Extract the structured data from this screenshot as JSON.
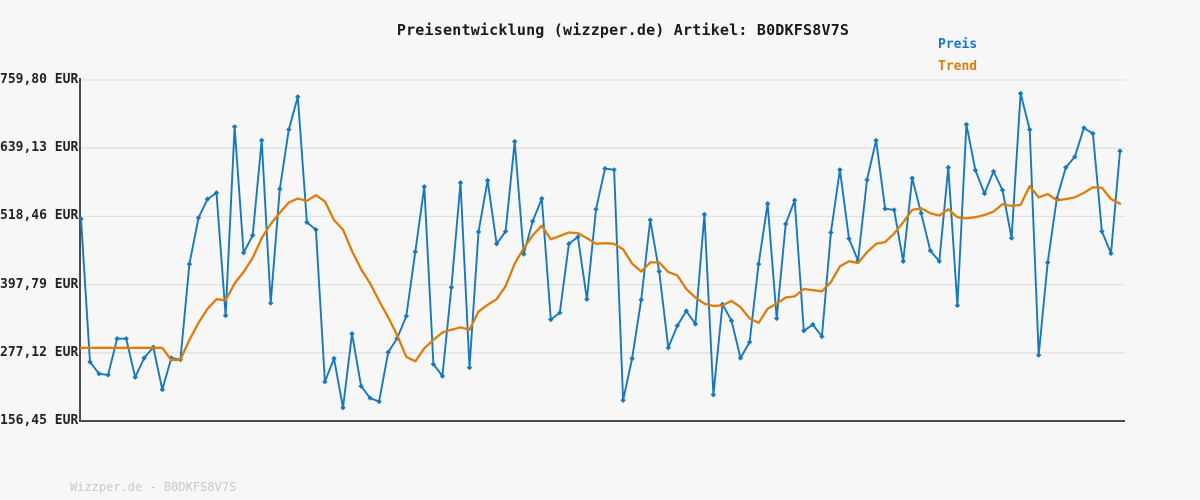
{
  "title": "Preisentwicklung (wizzper.de) Artikel: B0DKFS8V7S",
  "legend": {
    "preis_label": "Preis",
    "trend_label": "Trend",
    "position": "top-right"
  },
  "footer": "Wizzper.de - B0DKFS8V7S",
  "colors": {
    "preis": "#1878be",
    "trend": "#dd7e0b",
    "grid": "#e2e2e2",
    "axis": "#4d4d4d",
    "background": "#f7f7f7",
    "title_text": "#1a1a1a",
    "tick_text": "#222222",
    "footer_text": "#c9c9c9"
  },
  "y_axis": {
    "tick_labels": [
      "759,80 EUR",
      "639,13 EUR",
      "518,46 EUR",
      "397,79 EUR",
      "277,12 EUR",
      "156,45 EUR"
    ],
    "tick_values": [
      759.8,
      639.13,
      518.46,
      397.79,
      277.12,
      156.45
    ],
    "unit": "EUR"
  },
  "chart_data": {
    "type": "line",
    "title": "Preisentwicklung (wizzper.de) Artikel: B0DKFS8V7S",
    "xlabel": "",
    "ylabel": "EUR",
    "ylim": [
      156.45,
      759.8
    ],
    "grid": true,
    "legend_position": "top-right",
    "x_axis_labels_visible": false,
    "y_tick_values": [
      759.8,
      639.13,
      518.46,
      397.79,
      277.12,
      156.45
    ],
    "series": [
      {
        "name": "Preis",
        "color_key": "preis",
        "markers": true,
        "values": [
          514,
          261,
          240,
          238,
          302,
          302,
          234,
          268,
          287,
          212,
          268,
          265,
          434,
          516,
          549,
          560,
          343,
          677,
          454,
          485,
          653,
          365,
          567,
          672,
          730,
          508,
          495,
          226,
          267,
          180,
          311,
          218,
          197,
          191,
          278,
          303,
          342,
          456,
          571,
          257,
          236,
          393,
          578,
          251,
          491,
          582,
          470,
          492,
          651,
          452,
          510,
          550,
          336,
          348,
          470,
          482,
          372,
          531,
          603,
          601,
          193,
          267,
          371,
          512,
          421,
          286,
          325,
          351,
          328,
          522,
          203,
          363,
          334,
          268,
          296,
          434,
          541,
          338,
          505,
          547,
          316,
          327,
          306,
          490,
          601,
          479,
          440,
          583,
          653,
          532,
          530,
          439,
          586,
          524,
          458,
          439,
          605,
          361,
          681,
          600,
          559,
          598,
          565,
          480,
          736,
          672,
          273,
          437,
          550,
          605,
          624,
          675,
          665,
          492,
          453,
          634
        ]
      },
      {
        "name": "Trend",
        "color_key": "trend",
        "markers": false,
        "values": [
          286,
          286,
          286,
          286,
          286,
          286,
          286,
          286,
          286,
          286,
          264,
          265,
          300,
          330,
          355,
          372,
          370,
          400,
          420,
          445,
          480,
          505,
          525,
          543,
          550,
          546,
          556,
          545,
          512,
          495,
          457,
          425,
          400,
          369,
          340,
          308,
          270,
          262,
          285,
          300,
          313,
          318,
          322,
          318,
          350,
          362,
          372,
          395,
          435,
          462,
          485,
          502,
          478,
          484,
          490,
          489,
          480,
          470,
          471,
          470,
          460,
          435,
          421,
          437,
          437,
          420,
          414,
          390,
          375,
          364,
          360,
          361,
          369,
          358,
          338,
          330,
          355,
          364,
          375,
          377,
          390,
          388,
          386,
          402,
          430,
          439,
          436,
          455,
          470,
          473,
          488,
          508,
          530,
          533,
          524,
          520,
          531,
          517,
          515,
          517,
          521,
          527,
          540,
          537,
          539,
          572,
          552,
          558,
          547,
          549,
          552,
          560,
          570,
          569,
          549,
          541
        ]
      }
    ]
  }
}
